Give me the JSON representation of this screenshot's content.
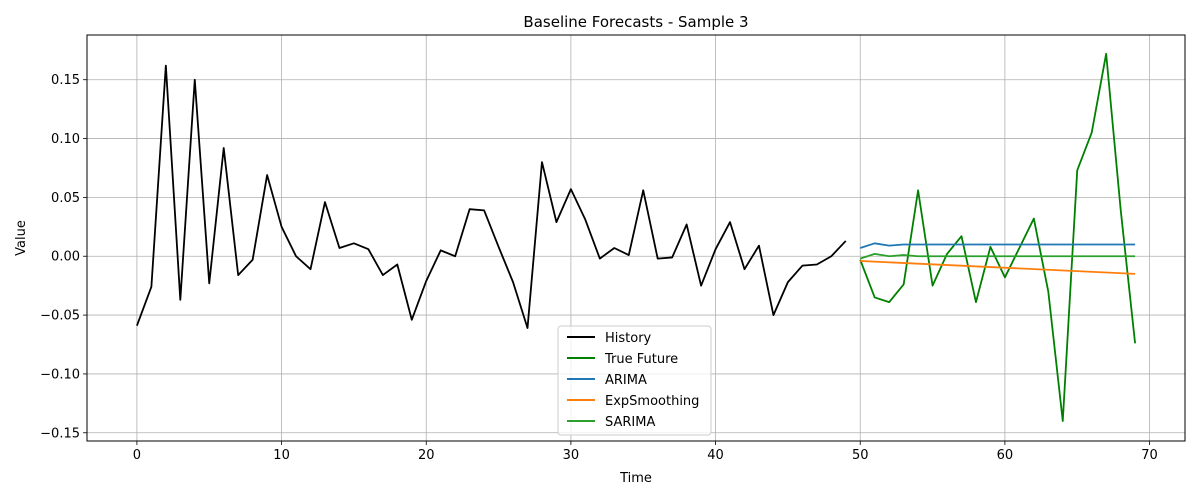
{
  "chart_data": {
    "type": "line",
    "title": "Baseline Forecasts - Sample 3",
    "xlabel": "Time",
    "ylabel": "Value",
    "xlim": [
      -3.45,
      72.45
    ],
    "ylim": [
      -0.157,
      0.188
    ],
    "xticks": [
      0,
      10,
      20,
      30,
      40,
      50,
      60,
      70
    ],
    "yticks": [
      -0.15,
      -0.1,
      -0.05,
      0.0,
      0.05,
      0.1,
      0.15
    ],
    "ytick_labels": [
      "−0.15",
      "−0.10",
      "−0.05",
      "0.00",
      "0.05",
      "0.10",
      "0.15"
    ],
    "grid": true,
    "legend_position": "lower-center",
    "series": [
      {
        "name": "History",
        "color": "#000000",
        "x": [
          0,
          1,
          2,
          3,
          4,
          5,
          6,
          7,
          8,
          9,
          10,
          11,
          12,
          13,
          14,
          15,
          16,
          17,
          18,
          19,
          20,
          21,
          22,
          23,
          24,
          25,
          26,
          27,
          28,
          29,
          30,
          31,
          32,
          33,
          34,
          35,
          36,
          37,
          38,
          39,
          40,
          41,
          42,
          43,
          44,
          45,
          46,
          47,
          48,
          49
        ],
        "y": [
          -0.059,
          -0.026,
          0.162,
          -0.037,
          0.15,
          -0.023,
          0.092,
          -0.016,
          -0.003,
          0.069,
          0.025,
          0.0,
          -0.011,
          0.046,
          0.007,
          0.011,
          0.006,
          -0.016,
          -0.007,
          -0.054,
          -0.021,
          0.005,
          0.0,
          0.04,
          0.039,
          0.008,
          -0.022,
          -0.061,
          0.08,
          0.029,
          0.057,
          0.031,
          -0.002,
          0.007,
          0.001,
          0.056,
          -0.002,
          -0.001,
          0.027,
          -0.025,
          0.006,
          0.029,
          -0.011,
          0.009,
          -0.05,
          -0.022,
          -0.008,
          -0.007,
          0.0,
          0.013
        ]
      },
      {
        "name": "True Future",
        "color": "#008000",
        "x": [
          50,
          51,
          52,
          53,
          54,
          55,
          56,
          57,
          58,
          59,
          60,
          61,
          62,
          63,
          64,
          65,
          66,
          67,
          68,
          69
        ],
        "y": [
          -0.003,
          -0.035,
          -0.039,
          -0.024,
          0.056,
          -0.025,
          0.002,
          0.017,
          -0.039,
          0.008,
          -0.018,
          0.007,
          0.032,
          -0.03,
          -0.14,
          0.073,
          0.105,
          0.172,
          0.04,
          -0.074
        ]
      },
      {
        "name": "ARIMA",
        "color": "#1f77b4",
        "x": [
          50,
          51,
          52,
          53,
          54,
          55,
          56,
          57,
          58,
          59,
          60,
          61,
          62,
          63,
          64,
          65,
          66,
          67,
          68,
          69
        ],
        "y": [
          0.007,
          0.011,
          0.009,
          0.01,
          0.01,
          0.01,
          0.01,
          0.01,
          0.01,
          0.01,
          0.01,
          0.01,
          0.01,
          0.01,
          0.01,
          0.01,
          0.01,
          0.01,
          0.01,
          0.01
        ]
      },
      {
        "name": "ExpSmoothing",
        "color": "#ff7f0e",
        "x": [
          50,
          69
        ],
        "y": [
          -0.004,
          -0.015
        ]
      },
      {
        "name": "SARIMA",
        "color": "#2ca02c",
        "x": [
          50,
          51,
          52,
          53,
          54,
          55,
          56,
          57,
          58,
          59,
          60,
          61,
          62,
          63,
          64,
          65,
          66,
          67,
          68,
          69
        ],
        "y": [
          -0.002,
          0.002,
          0.0,
          0.001,
          0.0,
          0.0,
          0.0,
          0.0,
          0.0,
          0.0,
          0.0,
          0.0,
          0.0,
          0.0,
          0.0,
          0.0,
          0.0,
          0.0,
          0.0,
          0.0
        ]
      }
    ]
  }
}
